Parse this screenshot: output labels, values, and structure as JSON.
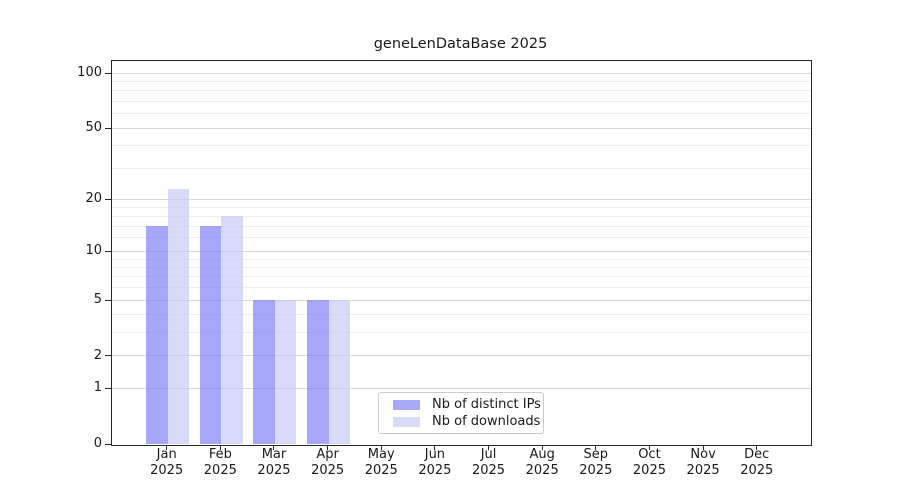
{
  "title": "geneLenDataBase 2025",
  "legend": {
    "items": [
      {
        "label": "Nb of distinct IPs",
        "key": "ips"
      },
      {
        "label": "Nb of downloads",
        "key": "downloads"
      }
    ]
  },
  "colors": {
    "ips": "#a7a7fa",
    "downloads": "#d9d9f9",
    "ips_fill": "rgba(120,120,248,0.65)",
    "downloads_fill": "rgba(197,197,246,0.65)",
    "grid_major": "#d9d9d9",
    "grid_minor": "#efefef",
    "axis": "#262626"
  },
  "chart_data": {
    "type": "bar",
    "title": "geneLenDataBase 2025",
    "categories": [
      "Jan 2025",
      "Feb 2025",
      "Mar 2025",
      "Apr 2025",
      "May 2025",
      "Jun 2025",
      "Jul 2025",
      "Aug 2025",
      "Sep 2025",
      "Oct 2025",
      "Nov 2025",
      "Dec 2025"
    ],
    "series": [
      {
        "name": "Nb of distinct IPs",
        "values": [
          14,
          14,
          5,
          5,
          0,
          0,
          0,
          0,
          0,
          0,
          0,
          0
        ]
      },
      {
        "name": "Nb of downloads",
        "values": [
          23,
          16,
          5,
          5,
          0,
          0,
          0,
          0,
          0,
          0,
          0,
          0
        ]
      }
    ],
    "yscale": "log1p",
    "ylim": [
      0,
      118
    ],
    "y_major_ticks": [
      0,
      1,
      2,
      5,
      10,
      20,
      50,
      100
    ],
    "y_minor_ticks": [
      3,
      4,
      6,
      7,
      8,
      9,
      12,
      14,
      16,
      18,
      30,
      40,
      60,
      70,
      80,
      90
    ],
    "grid": "horizontal",
    "legend_position": "lower-center-inside"
  }
}
